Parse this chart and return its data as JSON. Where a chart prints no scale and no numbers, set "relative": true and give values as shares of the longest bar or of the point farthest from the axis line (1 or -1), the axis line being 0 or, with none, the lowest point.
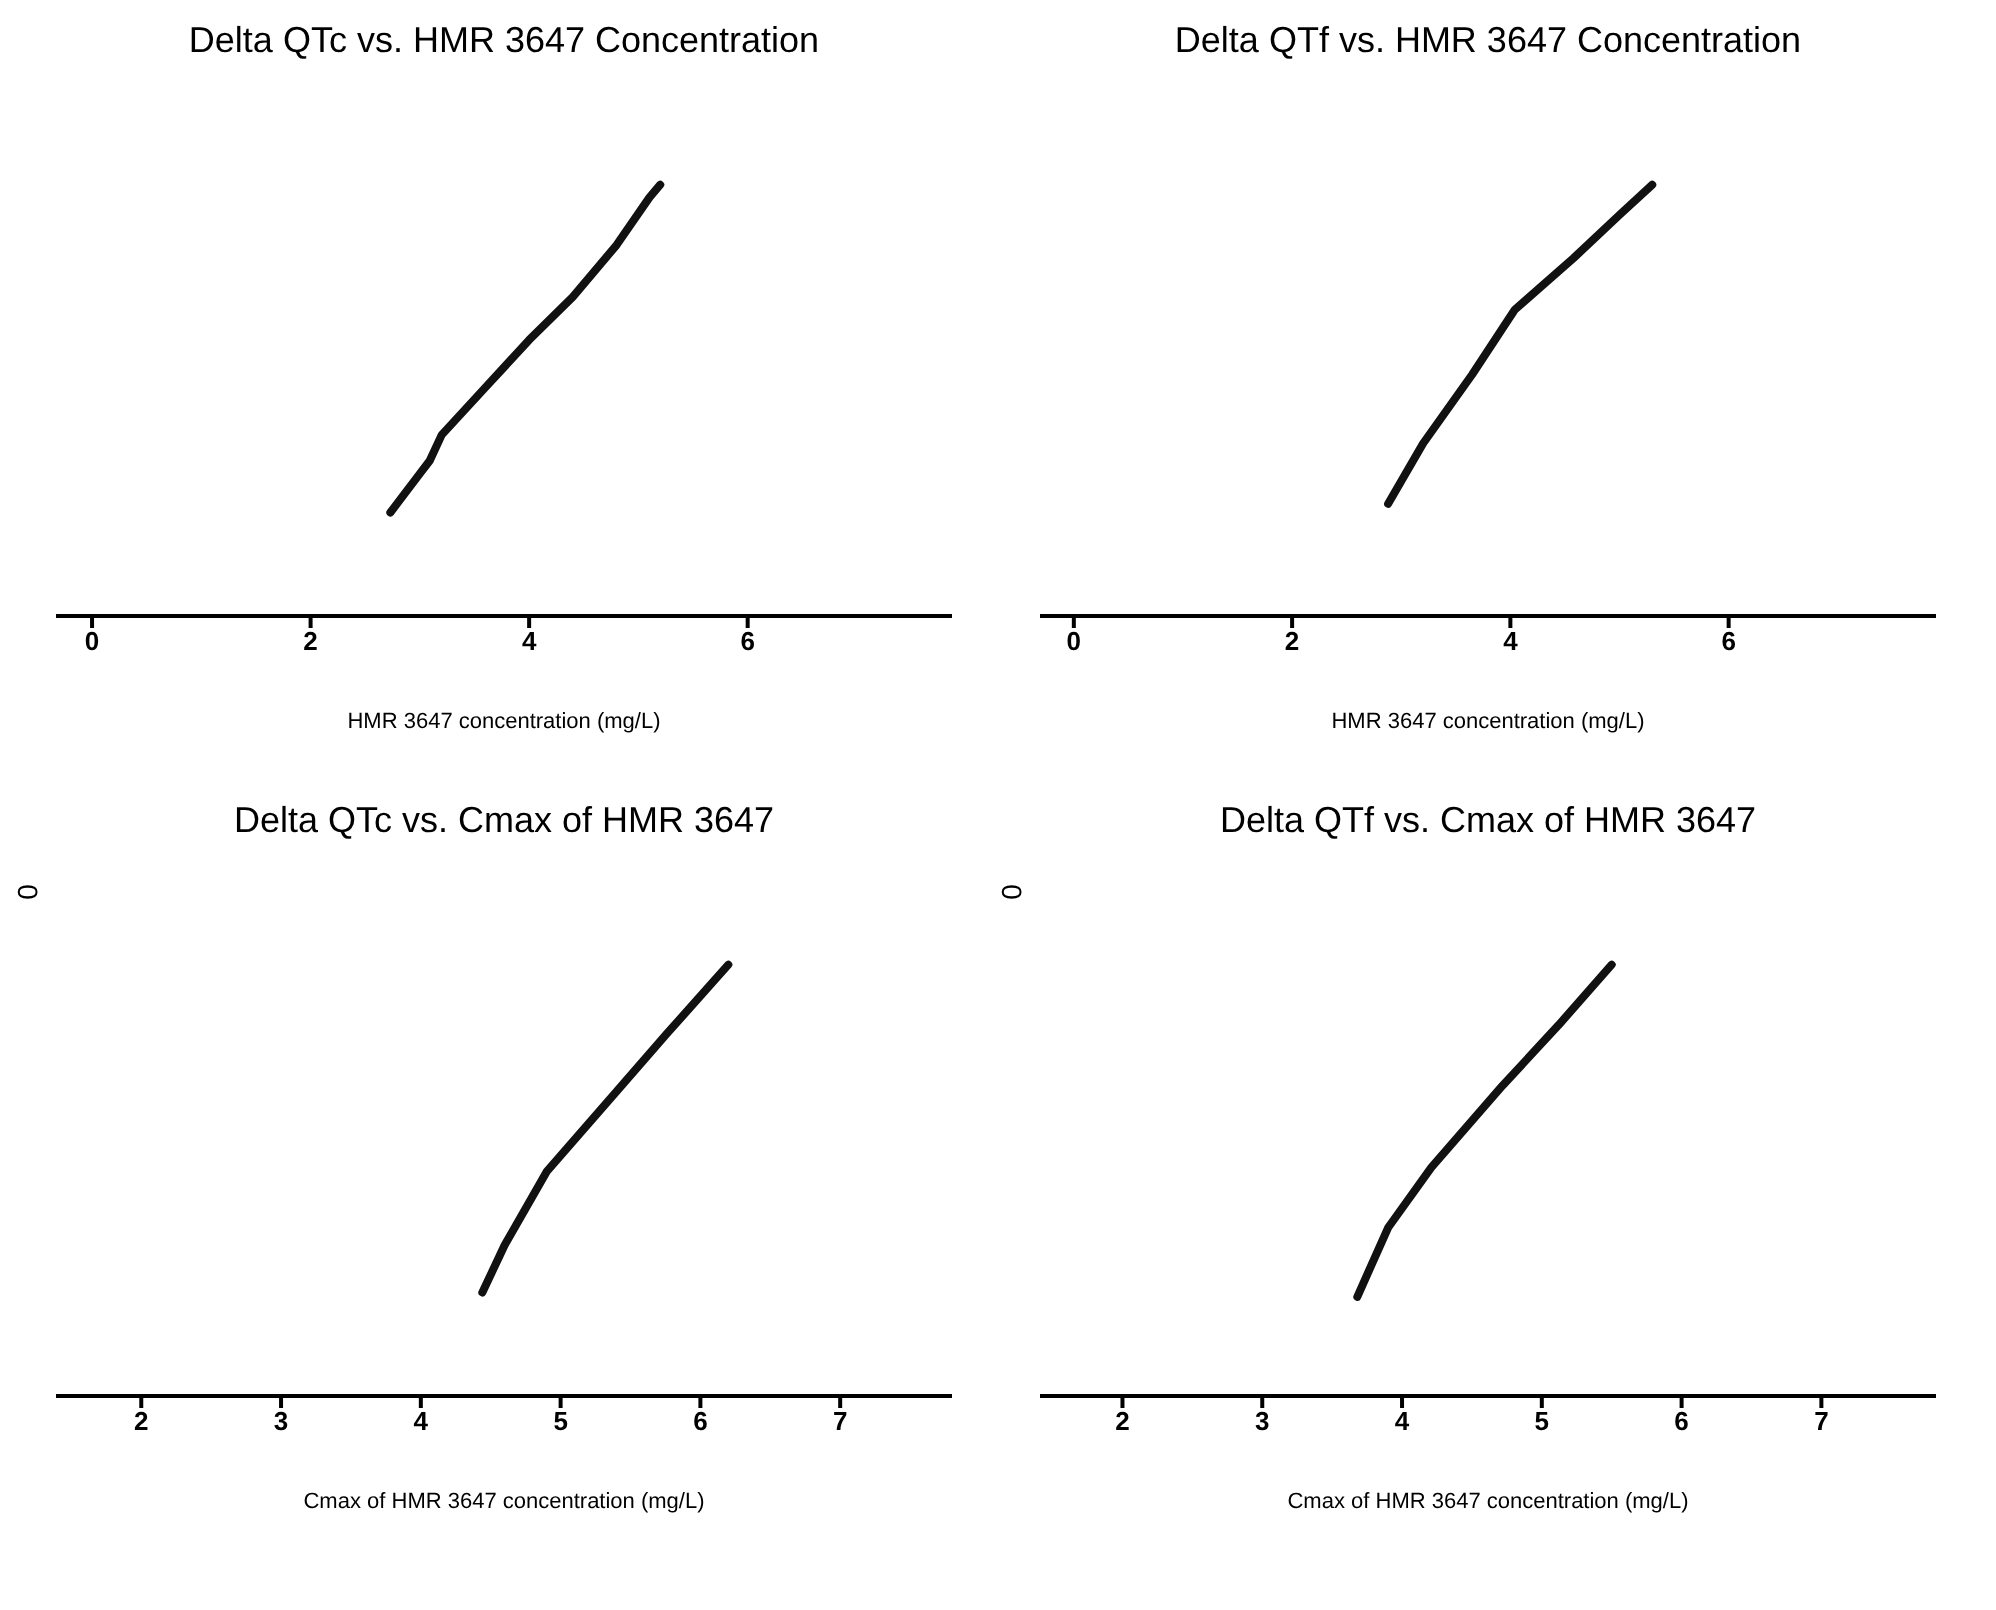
{
  "chart_data": [
    {
      "type": "line",
      "title": "Delta QTc vs. HMR 3647 Concentration",
      "xlabel": "HMR 3647 concentration (mg/L)",
      "relative": true,
      "marker": "none",
      "line_style": "solid",
      "grid": false,
      "legend": false,
      "tick_labels": "x",
      "xlim": [
        -0.33,
        7.87
      ],
      "xticks": [
        0,
        2,
        4,
        6
      ],
      "series": [
        {
          "color": "#111111",
          "x": [
            2.73,
            3.0,
            3.09,
            3.2,
            3.6,
            4.0,
            4.4,
            4.8,
            5.1,
            5.2
          ],
          "values": [
            0.24,
            0.33,
            0.36,
            0.42,
            0.53,
            0.64,
            0.74,
            0.86,
            0.97,
            1
          ]
        }
      ]
    },
    {
      "type": "line",
      "title": "Delta QTf vs. HMR 3647 Concentration",
      "xlabel": "HMR 3647 concentration (mg/L)",
      "relative": true,
      "marker": "none",
      "line_style": "solid",
      "grid": false,
      "legend": false,
      "tick_labels": "x",
      "xlim": [
        -0.31,
        7.9
      ],
      "xticks": [
        0,
        2,
        4,
        6
      ],
      "series": [
        {
          "color": "#111111",
          "x": [
            2.88,
            3.2,
            3.65,
            4.04,
            4.58,
            5.0,
            5.3
          ],
          "values": [
            0.26,
            0.4,
            0.56,
            0.71,
            0.83,
            0.93,
            1
          ]
        }
      ]
    },
    {
      "type": "line",
      "title": "Delta QTc vs. Cmax of HMR 3647",
      "xlabel": "Cmax of HMR 3647 concentration (mg/L)",
      "relative": true,
      "marker": "none",
      "line_style": "solid",
      "grid": false,
      "legend": false,
      "tick_labels": "x",
      "xlim": [
        1.39,
        7.8
      ],
      "xticks": [
        2,
        3,
        4,
        5,
        6,
        7
      ],
      "annotations": [
        "0"
      ],
      "series": [
        {
          "color": "#111111",
          "x": [
            4.44,
            4.6,
            4.9,
            5.41,
            5.76,
            6.2
          ],
          "values": [
            0.24,
            0.35,
            0.52,
            0.71,
            0.84,
            1
          ]
        }
      ]
    },
    {
      "type": "line",
      "title": "Delta QTf vs. Cmax of HMR 3647",
      "xlabel": "Cmax of HMR 3647 concentration (mg/L)",
      "relative": true,
      "marker": "none",
      "line_style": "solid",
      "grid": false,
      "legend": false,
      "tick_labels": "x",
      "xlim": [
        1.41,
        7.82
      ],
      "xticks": [
        2,
        3,
        4,
        5,
        6,
        7
      ],
      "annotations": [
        "0"
      ],
      "series": [
        {
          "color": "#111111",
          "x": [
            3.68,
            3.9,
            4.21,
            4.72,
            5.12,
            5.5
          ],
          "values": [
            0.23,
            0.39,
            0.53,
            0.72,
            0.86,
            1
          ]
        }
      ]
    }
  ]
}
